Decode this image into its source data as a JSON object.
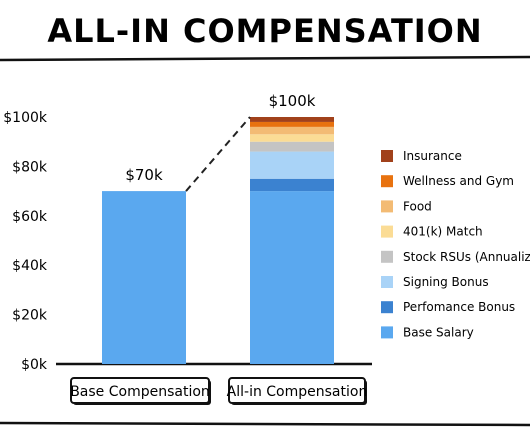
{
  "chart_data": {
    "type": "bar",
    "title": "ALL-IN COMPENSATION",
    "categories": [
      "Base Compensation",
      "All-in Compensation"
    ],
    "bar_labels": [
      "$70k",
      "$100k"
    ],
    "ylim": [
      0,
      100000
    ],
    "yticks": [
      {
        "value": 0,
        "label": "$0k"
      },
      {
        "value": 20000,
        "label": "$20k"
      },
      {
        "value": 40000,
        "label": "$40k"
      },
      {
        "value": 60000,
        "label": "$60k"
      },
      {
        "value": 80000,
        "label": "$80k"
      },
      {
        "value": 100000,
        "label": "$100k"
      }
    ],
    "series": [
      {
        "name": "Base Salary",
        "color": "#5aa8ef",
        "values": [
          70000,
          70000
        ]
      },
      {
        "name": "Perfomance Bonus",
        "color": "#3b82d0",
        "values": [
          0,
          5000
        ]
      },
      {
        "name": "Signing Bonus",
        "color": "#a9d3f7",
        "values": [
          0,
          11000
        ]
      },
      {
        "name": "Stock RSUs (Annualized)",
        "color": "#c4c4c4",
        "values": [
          0,
          4000
        ]
      },
      {
        "name": "401(k) Match",
        "color": "#fbdc95",
        "values": [
          0,
          3000
        ]
      },
      {
        "name": "Food",
        "color": "#f3bb74",
        "values": [
          0,
          3000
        ]
      },
      {
        "name": "Wellness and Gym",
        "color": "#e8720f",
        "values": [
          0,
          2000
        ]
      },
      {
        "name": "Insurance",
        "color": "#a1411b",
        "values": [
          0,
          2000
        ]
      }
    ],
    "legend_position": "right",
    "grid": false
  }
}
